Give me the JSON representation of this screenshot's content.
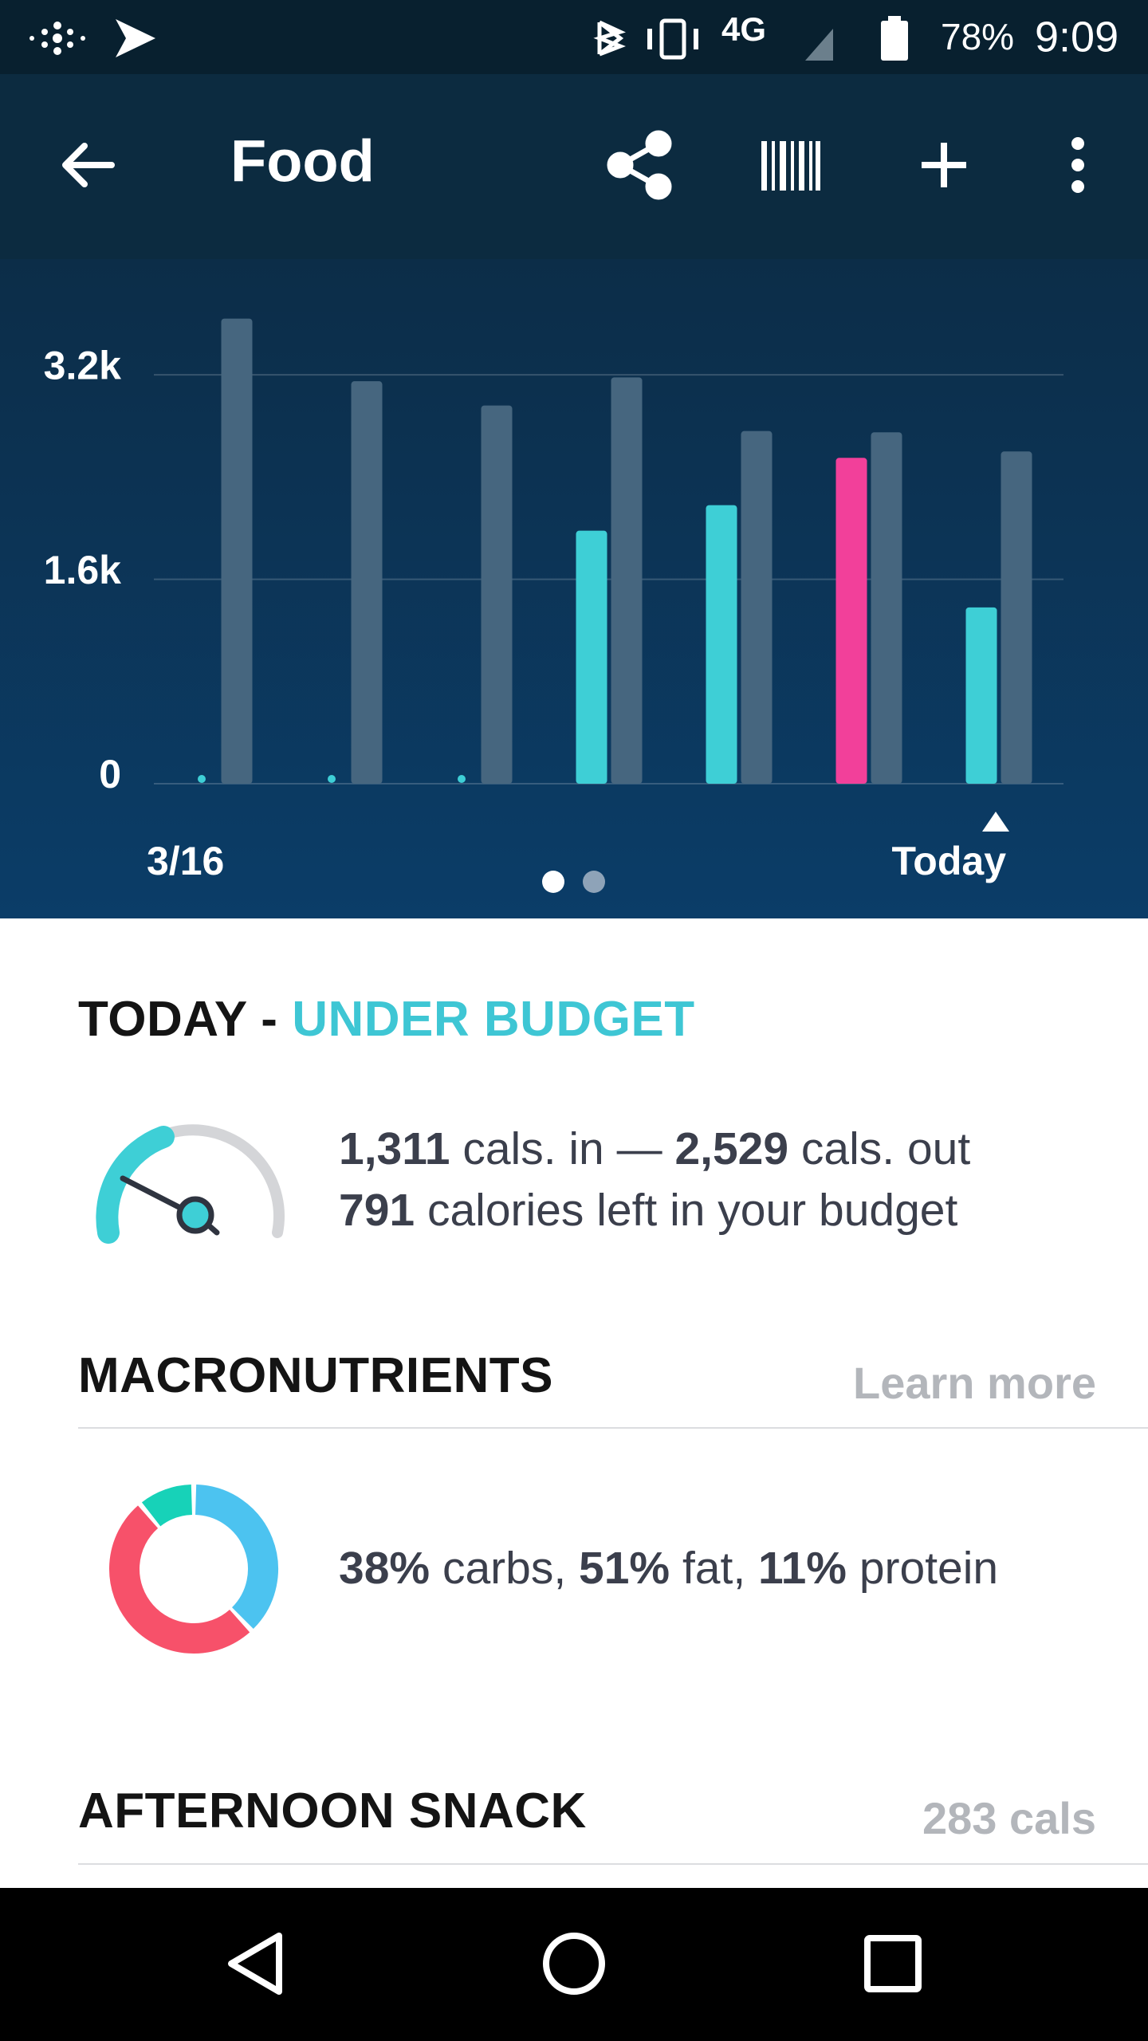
{
  "status_bar": {
    "battery": "78%",
    "time": "9:09"
  },
  "toolbar": {
    "title": "Food"
  },
  "chart_data": {
    "type": "bar",
    "categories": [
      "3/16",
      null,
      null,
      null,
      null,
      null,
      "Today"
    ],
    "series": [
      {
        "color": "#3ecfd6",
        "colors": [
          "#3ecfd6",
          "#3ecfd6",
          "#3ecfd6",
          "#3ecfd6",
          "#3ecfd6",
          "#f2409a",
          "#3ecfd6"
        ],
        "values": [
          0,
          0,
          0,
          1980,
          2180,
          2550,
          1380
        ]
      },
      {
        "color": "#46667f",
        "values": [
          3640,
          3150,
          2960,
          3180,
          2760,
          2750,
          2600
        ]
      }
    ],
    "ylim": [
      0,
      3700
    ],
    "yticks": [
      0,
      {
        "value": 1600,
        "label": "1.6k"
      },
      {
        "value": 3200,
        "label": "3.2k"
      }
    ],
    "grid": true
  },
  "today": {
    "heading": "TODAY -",
    "status": "UNDER BUDGET",
    "cals_in": "1,311",
    "cals_in_label": "cals. in —",
    "cals_out": "2,529",
    "cals_out_label": "cals. out",
    "left": "791",
    "left_label": "calories left in your budget"
  },
  "macronutrients": {
    "heading": "MACRONUTRIENTS",
    "link": "Learn more",
    "values": [
      38,
      51,
      11
    ],
    "value_labels": [
      "38%",
      "51%",
      "11%"
    ],
    "names": [
      "carbs,",
      "fat,",
      "protein"
    ],
    "colors": [
      "#4cc3f0",
      "#f7516a",
      "#17d2b8"
    ]
  },
  "meal": {
    "heading": "AFTERNOON SNACK",
    "calories": "283 cals"
  }
}
